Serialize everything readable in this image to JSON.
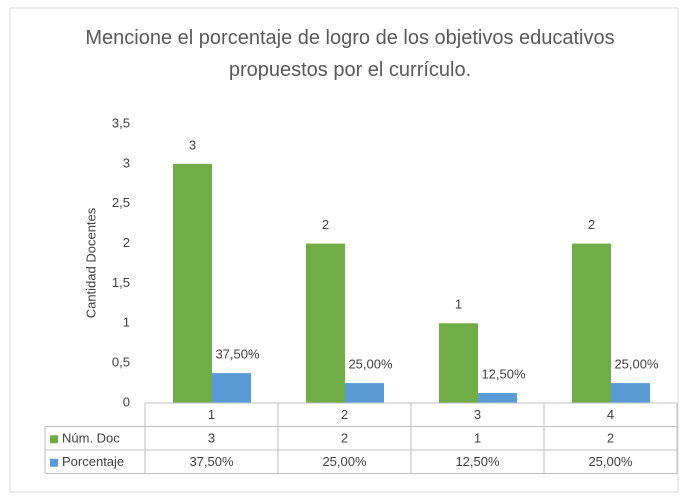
{
  "chart_data": {
    "type": "bar",
    "title": "Mencione el porcentaje de logro de los objetivos educativos propuestos por el currículo.",
    "y_label": "Cantidad Docentes",
    "categories": [
      "1",
      "2",
      "3",
      "4"
    ],
    "series": [
      {
        "name": "Núm. Doc",
        "color": "#70ad47",
        "values": [
          3,
          2,
          1,
          2
        ]
      },
      {
        "name": "Porcentaje",
        "color": "#5b9bd5",
        "values": [
          0.375,
          0.25,
          0.125,
          0.25
        ],
        "value_labels": [
          "37,50%",
          "25,00%",
          "12,50%",
          "25,00%"
        ]
      }
    ],
    "ylim": [
      0,
      3.5
    ],
    "yticks": [
      0,
      {
        "value": 0.5,
        "label": "0,5"
      },
      1,
      {
        "value": 1.5,
        "label": "1,5"
      },
      2,
      {
        "value": 2.5,
        "label": "2,5"
      },
      3,
      {
        "value": 3.5,
        "label": "3,5"
      }
    ],
    "grid": false,
    "data_table": true
  }
}
